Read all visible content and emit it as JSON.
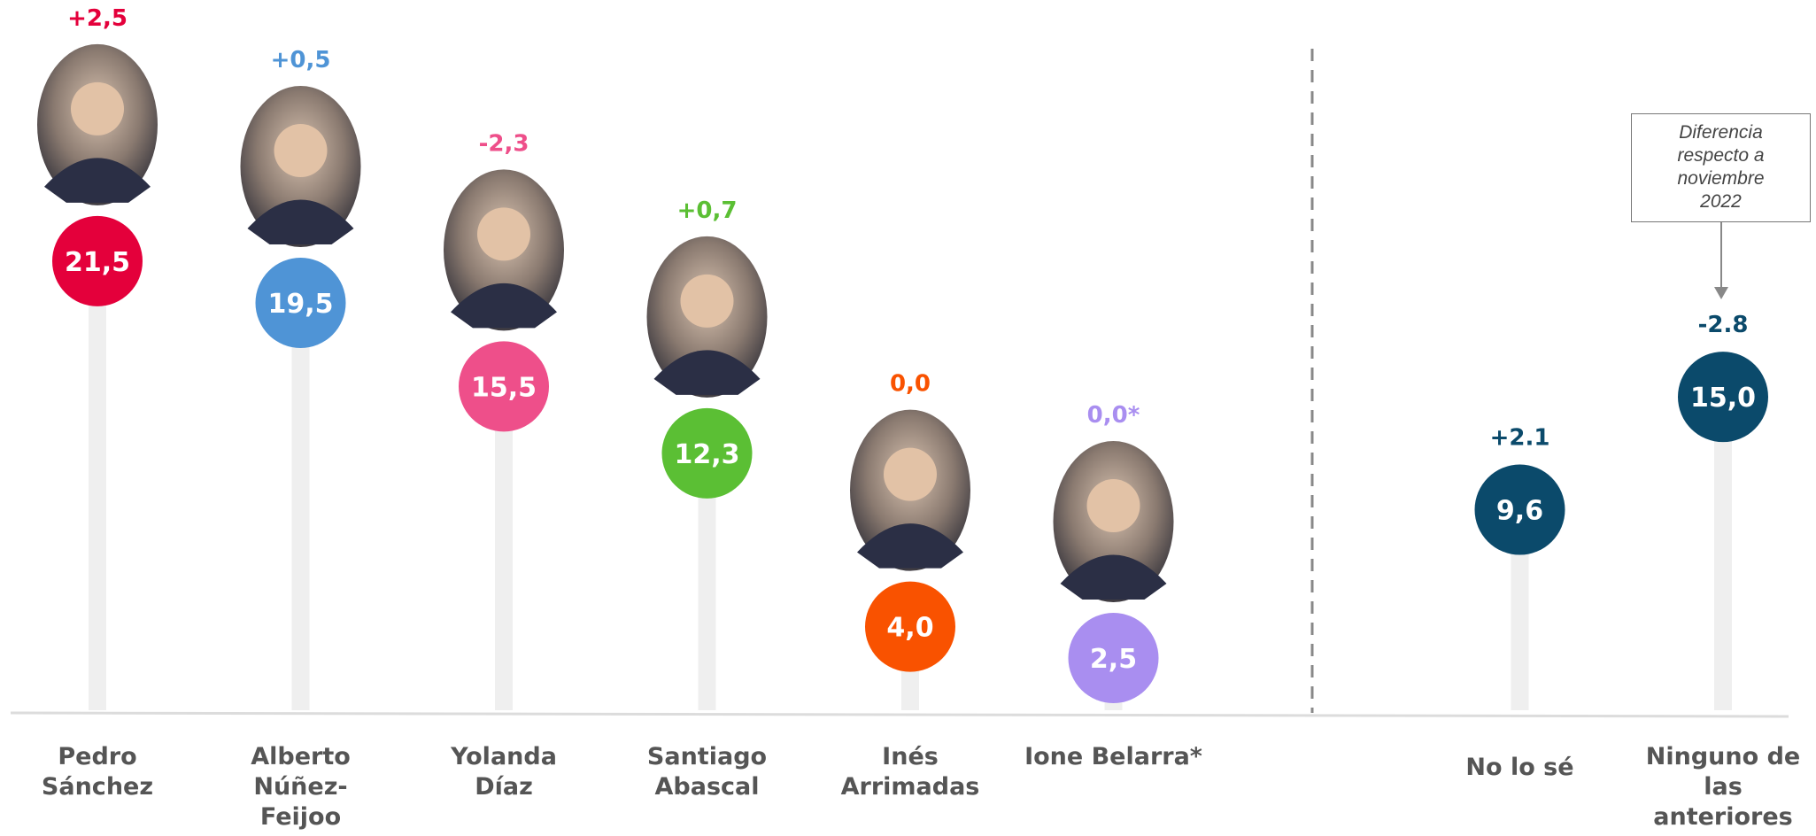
{
  "chart_data": {
    "type": "lollipop",
    "categories": [
      "Pedro\nSánchez",
      "Alberto\nNúñez-\nFeijoo",
      "Yolanda\nDíaz",
      "Santiago\nAbascal",
      "Inés\nArrimadas",
      "Ione Belarra*",
      "No lo sé",
      "Ninguno de\nlas\nanteriores"
    ],
    "values": [
      21.5,
      19.5,
      15.5,
      12.3,
      4.0,
      2.5,
      9.6,
      15.0
    ],
    "value_labels": [
      "21,5",
      "19,5",
      "15,5",
      "12,3",
      "4,0",
      "2,5",
      "9,6",
      "15,0"
    ],
    "change_labels": [
      "+2,5",
      "+0,5",
      "-2,3",
      "+0,7",
      "0,0",
      "0,0*",
      "+2.1",
      "-2.8"
    ],
    "colors": [
      "#e4003b",
      "#4f94d6",
      "#ee4f8a",
      "#5bbf34",
      "#f95200",
      "#a98ef0",
      "#0b4a6b",
      "#0b4a6b"
    ],
    "ylim": [
      0,
      34
    ],
    "annotation": "Diferencia\nrespecto a\nnoviembre\n2022"
  }
}
